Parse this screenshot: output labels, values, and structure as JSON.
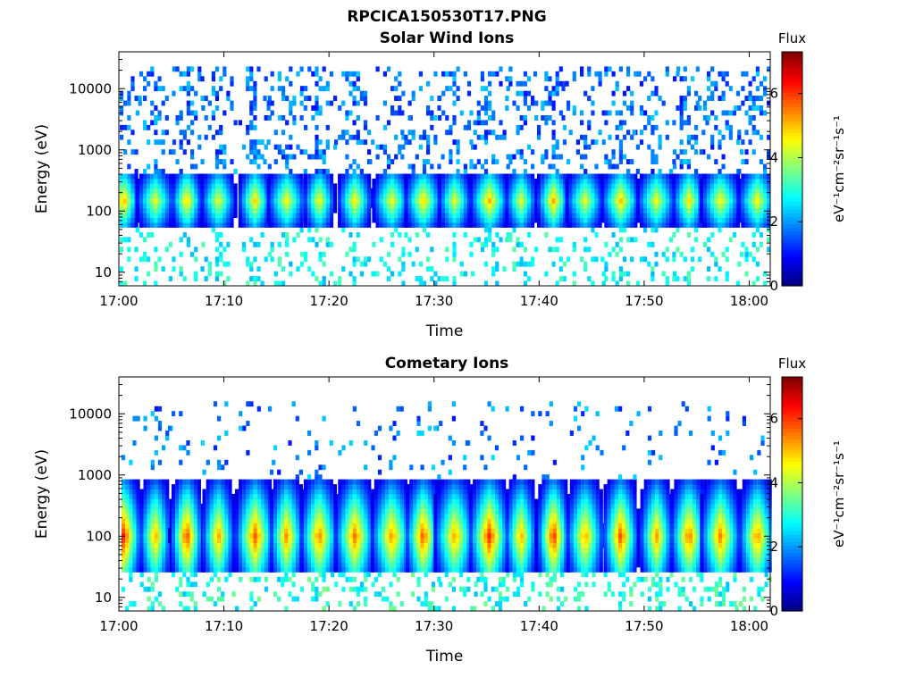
{
  "figure_title": "RPCICA150530T17.PNG",
  "chart_data": [
    {
      "type": "heatmap",
      "title": "Solar Wind Ions",
      "xlabel": "Time",
      "ylabel": "Energy (eV)",
      "x_range": [
        "17:00",
        "18:02"
      ],
      "x_ticks": [
        "17:00",
        "17:10",
        "17:20",
        "17:30",
        "17:40",
        "17:50",
        "18:00"
      ],
      "y_scale": "log",
      "y_range": [
        6,
        40000
      ],
      "y_ticks": [
        "10",
        "100",
        "1000",
        "10000"
      ],
      "colorbar": {
        "label": "Flux",
        "unit": "eV⁻¹cm⁻²sr⁻¹s⁻¹",
        "range": [
          0,
          7.3
        ],
        "ticks": [
          "0",
          "2",
          "4",
          "6"
        ]
      },
      "colormap": "jet",
      "burst_times_min": [
        0.3,
        3.3,
        6.3,
        9.3,
        12.8,
        15.8,
        18.9,
        22.3,
        25.8,
        28.8,
        31.8,
        35.1,
        38.1,
        41.2,
        44.2,
        47.6,
        51.0,
        54.1,
        57.1,
        60.6
      ],
      "core_energy_ev": 150,
      "core_flux": 4.5,
      "peak_flux": 5.3
    },
    {
      "type": "heatmap",
      "title": "Cometary Ions",
      "xlabel": "Time",
      "ylabel": "Energy (eV)",
      "x_range": [
        "17:00",
        "18:02"
      ],
      "x_ticks": [
        "17:00",
        "17:10",
        "17:20",
        "17:30",
        "17:40",
        "17:50",
        "18:00"
      ],
      "y_scale": "log",
      "y_range": [
        6,
        40000
      ],
      "y_ticks": [
        "10",
        "100",
        "1000",
        "10000"
      ],
      "colorbar": {
        "label": "Flux",
        "unit": "eV⁻¹cm⁻²sr⁻¹s⁻¹",
        "range": [
          0,
          7.3
        ],
        "ticks": [
          "0",
          "2",
          "4",
          "6"
        ]
      },
      "colormap": "jet",
      "burst_times_min": [
        0.3,
        3.3,
        6.3,
        9.3,
        12.8,
        15.8,
        18.9,
        22.3,
        25.8,
        28.8,
        31.8,
        35.1,
        38.1,
        41.2,
        44.2,
        47.6,
        51.0,
        54.1,
        57.1,
        60.6
      ],
      "core_energy_ev": 100,
      "core_flux": 5.3,
      "peak_flux": 6.4
    }
  ]
}
